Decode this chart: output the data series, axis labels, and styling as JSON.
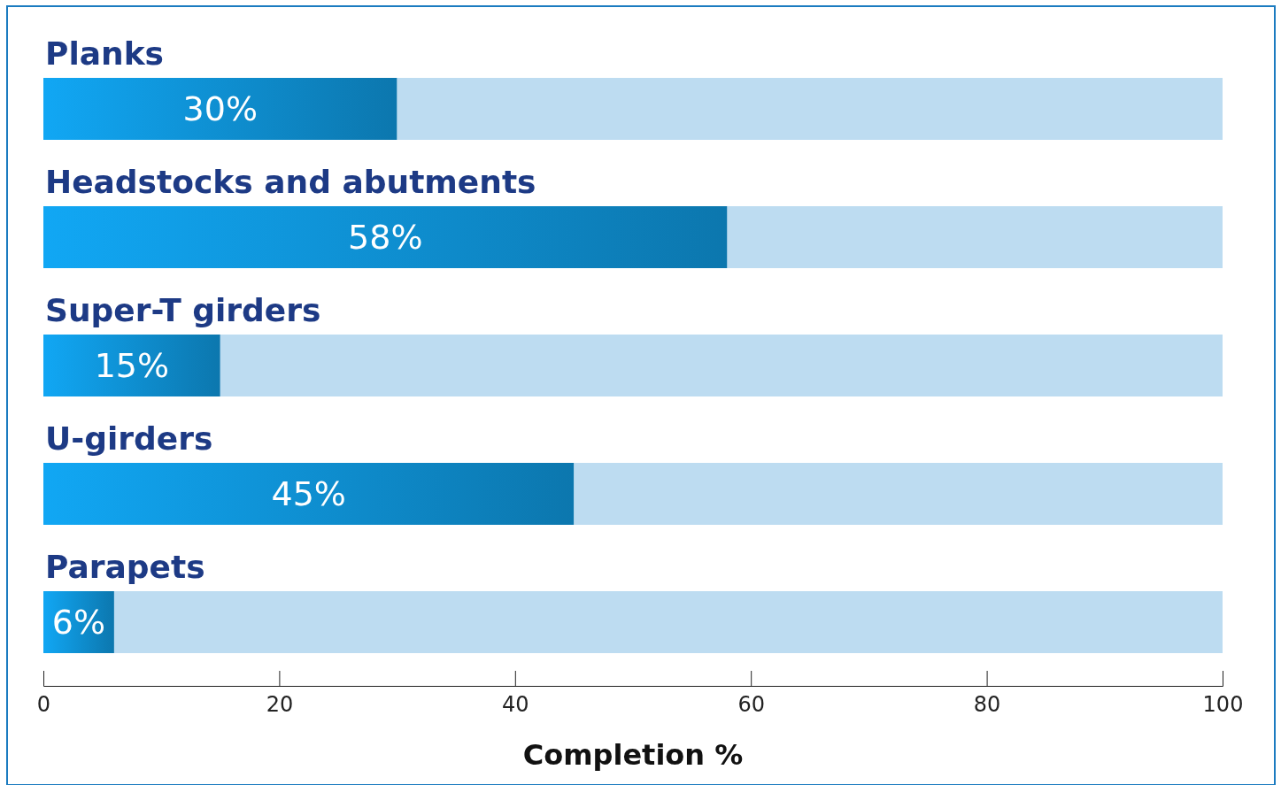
{
  "chart_data": {
    "type": "bar",
    "orientation": "horizontal",
    "stacked": true,
    "xlabel": "Completion %",
    "categories": [
      "Planks",
      "Headstocks and abutments",
      "Super-T girders",
      "U-girders",
      "Parapets"
    ],
    "series": [
      {
        "color": "#0e8ccc",
        "values": [
          30,
          58,
          15,
          45,
          6
        ],
        "value_labels": [
          "30%",
          "58%",
          "15%",
          "45%",
          "6%"
        ]
      },
      {
        "color": "#bddcf1",
        "values": [
          70,
          42,
          85,
          55,
          94
        ]
      }
    ],
    "xlim": [
      0,
      100
    ],
    "xticks": [
      0,
      20,
      40,
      60,
      80,
      100
    ],
    "grid": false
  }
}
